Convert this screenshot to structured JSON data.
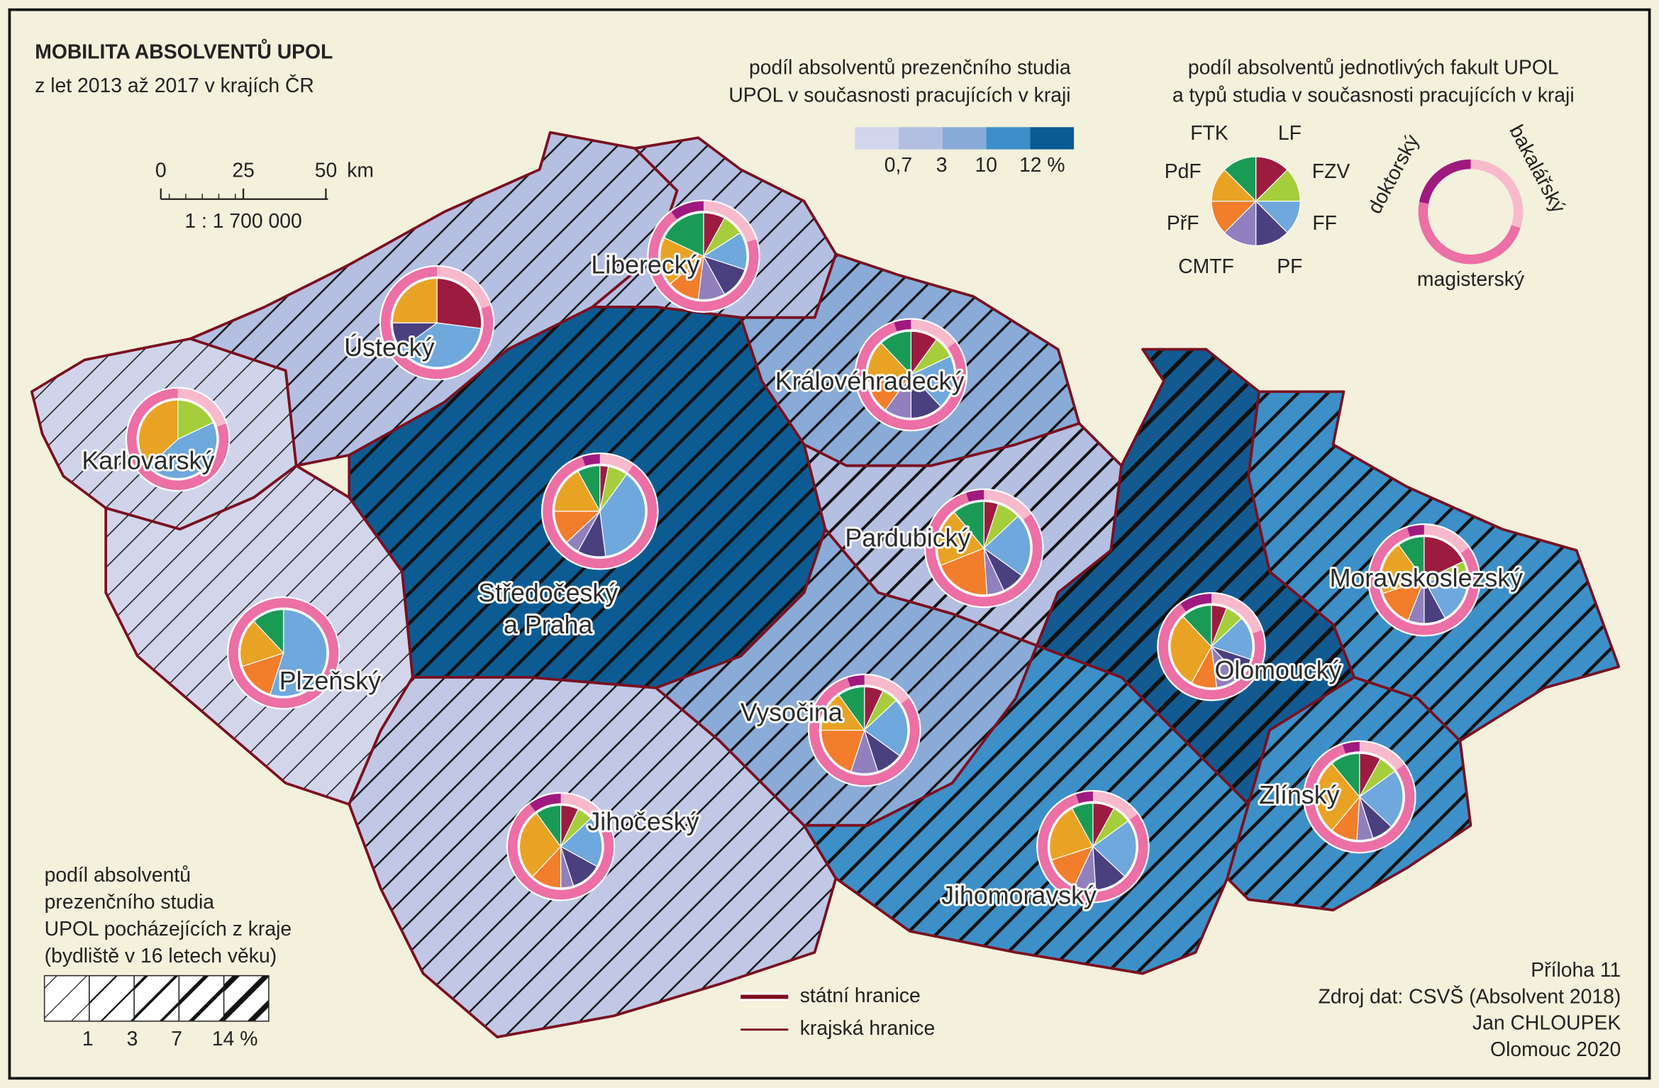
{
  "header": {
    "title": "MOBILITA ABSOLVENTŮ UPOL",
    "subtitle": "z let 2013 až 2017 v krajích ČR"
  },
  "scale": {
    "ticks": [
      "0",
      "25",
      "50"
    ],
    "unit": "km",
    "ratio": "1 : 1 700 000"
  },
  "choropleth_legend": {
    "title": [
      "podíl absolventů prezenčního studia",
      "UPOL v současnosti pracujících v kraji"
    ],
    "colors": [
      "#d2d6ec",
      "#b3bfe2",
      "#88abd7",
      "#3c8fc8",
      "#0a5a93"
    ],
    "labels": [
      "0,7",
      "3",
      "10",
      "12 %"
    ]
  },
  "pie_legend": {
    "title": [
      "podíl absolventů jednotlivých fakult UPOL",
      "a typů studia v současnosti pracujících v kraji"
    ],
    "faculties": [
      {
        "name": "LF",
        "color": "#9c1c40"
      },
      {
        "name": "FZV",
        "color": "#a6cd3c"
      },
      {
        "name": "FF",
        "color": "#6fa8dc"
      },
      {
        "name": "PF",
        "color": "#4a3f7f"
      },
      {
        "name": "CMTF",
        "color": "#9080bd"
      },
      {
        "name": "PřF",
        "color": "#f27d2b"
      },
      {
        "name": "PdF",
        "color": "#e9a324"
      },
      {
        "name": "FTK",
        "color": "#1a9b55"
      }
    ],
    "study_types": [
      {
        "name": "bakalářský",
        "color": "#f8b9cc"
      },
      {
        "name": "magisterský",
        "color": "#ec6fa5"
      },
      {
        "name": "doktorský",
        "color": "#a0197f"
      }
    ]
  },
  "hatch_legend": {
    "title": [
      "podíl absolventů",
      "prezenčního studia",
      "UPOL pocházejících z kraje",
      "(bydliště v 16 letech věku)"
    ],
    "labels": [
      "1",
      "3",
      "7",
      "14 %"
    ]
  },
  "border_legend": [
    "státní hranice",
    "krajská hranice"
  ],
  "regions": [
    {
      "name": "Karlovarský",
      "fill": "#d0d4ea",
      "hatch_width": 1,
      "faculties": [
        0,
        18,
        45,
        0,
        0,
        0,
        37,
        0
      ],
      "study_types": [
        20,
        80,
        0
      ]
    },
    {
      "name": "Ústecký",
      "fill": "#b5bfe2",
      "hatch_width": 1.6,
      "faculties": [
        27,
        0,
        38,
        10,
        0,
        0,
        25,
        0
      ],
      "study_types": [
        20,
        80,
        0
      ]
    },
    {
      "name": "Liberecký",
      "fill": "#b5bfe2",
      "hatch_width": 1.6,
      "faculties": [
        8,
        8,
        14,
        12,
        10,
        12,
        18,
        18
      ],
      "study_types": [
        20,
        70,
        10
      ]
    },
    {
      "name": "Královéhradecký",
      "fill": "#8aabd7",
      "hatch_width": 2.2,
      "faculties": [
        10,
        8,
        20,
        12,
        10,
        12,
        16,
        12
      ],
      "study_types": [
        15,
        80,
        5
      ]
    },
    {
      "name": [
        "Středočeský",
        "a Praha"
      ],
      "fill": "#0c5c93",
      "hatch_width": 3,
      "faculties": [
        3,
        7,
        38,
        10,
        5,
        12,
        17,
        8
      ],
      "study_types": [
        10,
        85,
        5
      ]
    },
    {
      "name": "Plzeňský",
      "fill": "#d3d5eb",
      "hatch_width": 1,
      "faculties": [
        0,
        0,
        55,
        0,
        0,
        15,
        18,
        12
      ],
      "study_types": [
        0,
        100,
        0
      ]
    },
    {
      "name": "Jihočeský",
      "fill": "#c0c8e6",
      "hatch_width": 1.6,
      "faculties": [
        7,
        6,
        20,
        12,
        5,
        12,
        28,
        10
      ],
      "study_types": [
        15,
        75,
        10
      ]
    },
    {
      "name": "Pardubický",
      "fill": "#b5bfe2",
      "hatch_width": 2.6,
      "faculties": [
        5,
        8,
        22,
        8,
        6,
        20,
        20,
        11
      ],
      "study_types": [
        15,
        80,
        5
      ]
    },
    {
      "name": "Vysočina",
      "fill": "#8aabd7",
      "hatch_width": 2.2,
      "faculties": [
        7,
        6,
        22,
        10,
        10,
        20,
        15,
        10
      ],
      "study_types": [
        15,
        80,
        5
      ]
    },
    {
      "name": "Jihomoravský",
      "fill": "#3d8fc8",
      "hatch_width": 3,
      "faculties": [
        8,
        7,
        22,
        12,
        8,
        13,
        22,
        8
      ],
      "study_types": [
        15,
        80,
        5
      ]
    },
    {
      "name": "Olomoucký",
      "fill": "#135a91",
      "hatch_width": 4,
      "faculties": [
        6,
        7,
        17,
        8,
        10,
        10,
        30,
        12
      ],
      "study_types": [
        20,
        70,
        10
      ]
    },
    {
      "name": "Zlínský",
      "fill": "#3d8fc8",
      "hatch_width": 3,
      "faculties": [
        8,
        7,
        22,
        8,
        6,
        10,
        28,
        11
      ],
      "study_types": [
        15,
        80,
        5
      ]
    },
    {
      "name": "Moravskoslezský",
      "fill": "#3d8fc8",
      "hatch_width": 3,
      "faculties": [
        18,
        6,
        18,
        8,
        6,
        14,
        20,
        10
      ],
      "study_types": [
        15,
        80,
        5
      ]
    }
  ],
  "footer": [
    "Příloha 11",
    "Zdroj dat: CSVŠ (Absolvent 2018)",
    "Jan CHLOUPEK",
    "Olomouc 2020"
  ]
}
